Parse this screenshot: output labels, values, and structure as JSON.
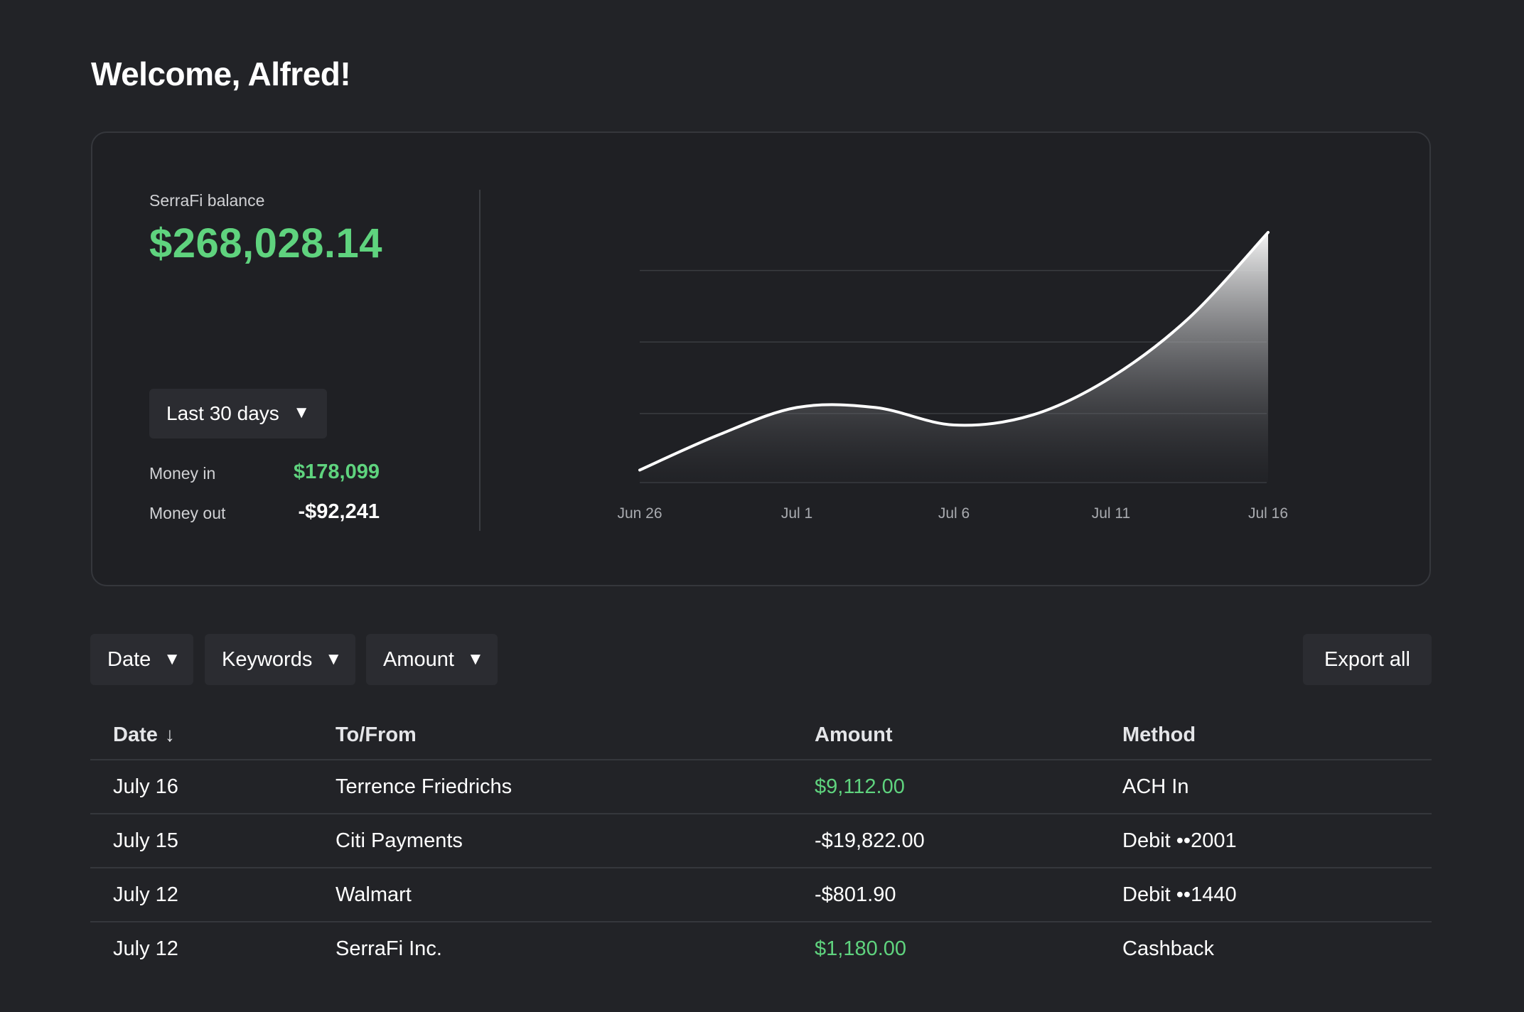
{
  "header": {
    "welcome": "Welcome, Alfred!"
  },
  "summary": {
    "balance_label": "SerraFi balance",
    "balance_value": "$268,028.14",
    "range_label": "Last 30 days",
    "money_in_label": "Money in",
    "money_in_value": "$178,099",
    "money_out_label": "Money out",
    "money_out_value": "-$92,241"
  },
  "chart_data": {
    "type": "area",
    "x_ticks": [
      "Jun 26",
      "Jul 1",
      "Jul 6",
      "Jul 11",
      "Jul 16"
    ],
    "x": [
      0,
      2.5,
      5,
      7.5,
      10,
      12.5,
      15,
      17.5,
      20
    ],
    "y": [
      0.05,
      0.19,
      0.3,
      0.3,
      0.23,
      0.27,
      0.42,
      0.66,
      1.0
    ],
    "grid": true,
    "legend": "none",
    "colors": {
      "line": "#ffffff",
      "grid": "#3a3c41",
      "tick": "#a9abb0"
    }
  },
  "filters": {
    "date": "Date",
    "keywords": "Keywords",
    "amount": "Amount",
    "export": "Export all",
    "caret": "▼"
  },
  "table": {
    "headers": {
      "date": "Date",
      "date_sort": "↓",
      "who": "To/From",
      "amount": "Amount",
      "method": "Method"
    },
    "rows": [
      {
        "date": "July 16",
        "who": "Terrence Friedrichs",
        "amount": "$9,112.00",
        "method": "ACH In",
        "positive": true
      },
      {
        "date": "July 15",
        "who": "Citi Payments",
        "amount": "-$19,822.00",
        "method": "Debit ••2001",
        "positive": false
      },
      {
        "date": "July 12",
        "who": "Walmart",
        "amount": "-$801.90",
        "method": "Debit ••1440",
        "positive": false
      },
      {
        "date": "July 12",
        "who": "SerraFi Inc.",
        "amount": "$1,180.00",
        "method": "Cashback",
        "positive": true
      }
    ]
  },
  "colors": {
    "background": "#222327",
    "card": "#1f2024",
    "positive": "#5fd37e",
    "button": "#2b2c31"
  }
}
